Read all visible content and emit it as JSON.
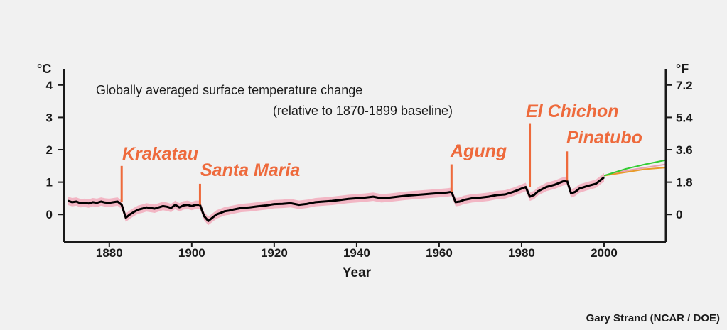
{
  "chart_data": {
    "type": "line",
    "title": "Globally averaged surface temperature change",
    "subtitle": "(relative to 1870-1899 baseline)",
    "xlabel": "Year",
    "ylabel_left": "°C",
    "ylabel_right": "°F",
    "xlim": [
      1869,
      2015
    ],
    "ylim": [
      -0.85,
      4.5
    ],
    "x_ticks": [
      1880,
      1900,
      1920,
      1940,
      1960,
      1980,
      2000
    ],
    "y_ticks_left": [
      0,
      1,
      2,
      3,
      4
    ],
    "y_ticks_right": [
      {
        "value": 0,
        "label": "0"
      },
      {
        "value": 1,
        "label": "1.8"
      },
      {
        "value": 2,
        "label": "3.6"
      },
      {
        "value": 3,
        "label": "5.4"
      },
      {
        "value": 4,
        "label": "7.2"
      }
    ],
    "grid": false,
    "series": [
      {
        "color": "#000000",
        "band_color": "#f2b6c4",
        "x": [
          1870,
          1871,
          1872,
          1873,
          1874,
          1875,
          1876,
          1877,
          1878,
          1879,
          1880,
          1881,
          1882,
          1883,
          1884,
          1885,
          1886,
          1887,
          1888,
          1889,
          1890,
          1891,
          1892,
          1893,
          1894,
          1895,
          1896,
          1897,
          1898,
          1899,
          1900,
          1901,
          1902,
          1903,
          1904,
          1905,
          1906,
          1907,
          1908,
          1909,
          1910,
          1912,
          1914,
          1916,
          1918,
          1920,
          1922,
          1924,
          1926,
          1928,
          1930,
          1932,
          1934,
          1936,
          1938,
          1940,
          1942,
          1944,
          1946,
          1948,
          1950,
          1952,
          1954,
          1956,
          1958,
          1960,
          1962,
          1963,
          1964,
          1965,
          1966,
          1968,
          1970,
          1972,
          1974,
          1976,
          1978,
          1980,
          1981,
          1982,
          1983,
          1984,
          1986,
          1988,
          1990,
          1991,
          1992,
          1993,
          1994,
          1996,
          1998,
          2000
        ],
        "values": [
          0.42,
          0.38,
          0.4,
          0.35,
          0.36,
          0.34,
          0.38,
          0.36,
          0.4,
          0.37,
          0.36,
          0.38,
          0.4,
          0.3,
          -0.1,
          0.0,
          0.08,
          0.15,
          0.18,
          0.22,
          0.2,
          0.18,
          0.22,
          0.26,
          0.24,
          0.2,
          0.3,
          0.22,
          0.28,
          0.3,
          0.26,
          0.3,
          0.3,
          -0.05,
          -0.2,
          -0.1,
          0.0,
          0.05,
          0.1,
          0.12,
          0.15,
          0.2,
          0.22,
          0.25,
          0.28,
          0.32,
          0.33,
          0.35,
          0.3,
          0.33,
          0.38,
          0.4,
          0.42,
          0.45,
          0.48,
          0.5,
          0.52,
          0.55,
          0.5,
          0.52,
          0.55,
          0.58,
          0.6,
          0.62,
          0.64,
          0.66,
          0.68,
          0.7,
          0.38,
          0.4,
          0.45,
          0.5,
          0.52,
          0.55,
          0.6,
          0.62,
          0.7,
          0.8,
          0.85,
          0.55,
          0.6,
          0.72,
          0.85,
          0.92,
          1.02,
          1.05,
          0.65,
          0.7,
          0.8,
          0.88,
          0.95,
          1.15
        ]
      },
      {
        "color": "#33cc33",
        "x": [
          2000,
          2005,
          2010,
          2015
        ],
        "values": [
          1.2,
          1.4,
          1.55,
          1.68
        ]
      },
      {
        "color": "#e89a2a",
        "x": [
          2000,
          2005,
          2010,
          2015
        ],
        "values": [
          1.2,
          1.3,
          1.4,
          1.45
        ]
      },
      {
        "color": "#e8a0b4",
        "x": [
          2000,
          2005,
          2010,
          2015
        ],
        "values": [
          1.2,
          1.35,
          1.45,
          1.55
        ]
      }
    ],
    "annotations": [
      {
        "label": "Krakatau",
        "year": 1883,
        "bar_top": 1.5,
        "bar_bottom": 0.4
      },
      {
        "label": "Santa Maria",
        "year": 1902,
        "bar_top": 0.95,
        "bar_bottom": 0.3
      },
      {
        "label": "Agung",
        "year": 1963,
        "bar_top": 1.55,
        "bar_bottom": 0.7
      },
      {
        "label": "El Chichon",
        "year": 1982,
        "bar_top": 2.8,
        "bar_bottom": 0.85
      },
      {
        "label": "Pinatubo",
        "year": 1991,
        "bar_top": 1.95,
        "bar_bottom": 1.05
      }
    ],
    "credit": "Gary Strand (NCAR / DOE)"
  }
}
